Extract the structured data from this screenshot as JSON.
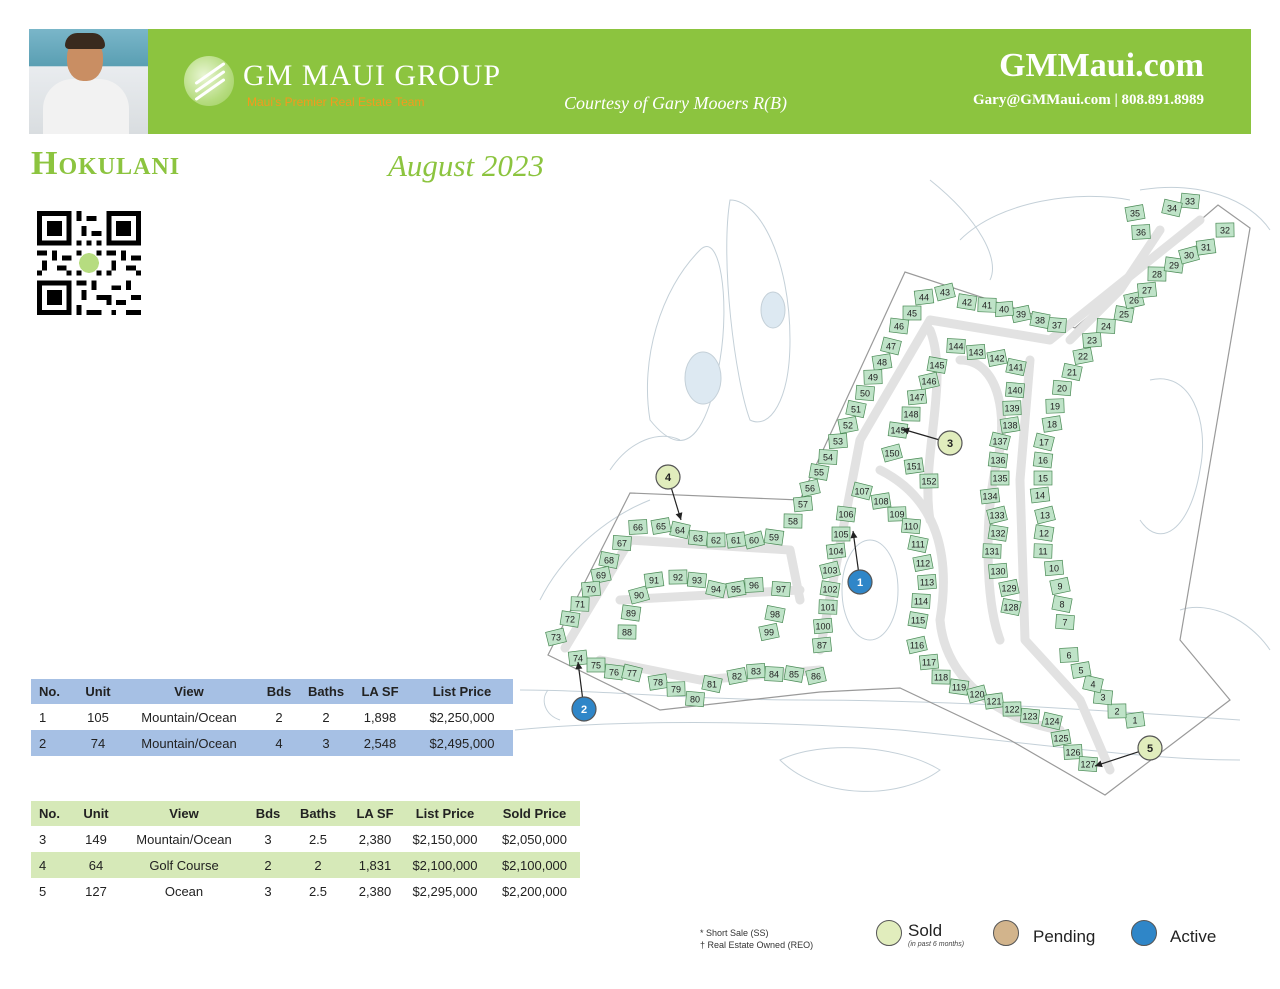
{
  "header": {
    "brand": "GM MAUI GROUP",
    "tagline": "Maui's Premier Real Estate Team",
    "courtesy": "Courtesy of Gary Mooers R(B)",
    "site": "GMMaui.com",
    "contact": "Gary@GMMaui.com | 808.891.8989"
  },
  "page": {
    "title": "Hokulani",
    "date": "August 2023"
  },
  "active_table": {
    "headers": [
      "No.",
      "Unit",
      "View",
      "Bds",
      "Baths",
      "LA SF",
      "List Price"
    ],
    "rows": [
      [
        "1",
        "105",
        "Mountain/Ocean",
        "2",
        "2",
        "1,898",
        "$2,250,000"
      ],
      [
        "2",
        "74",
        "Mountain/Ocean",
        "4",
        "3",
        "2,548",
        "$2,495,000"
      ]
    ]
  },
  "sold_table": {
    "headers": [
      "No.",
      "Unit",
      "View",
      "Bds",
      "Baths",
      "LA SF",
      "List Price",
      "Sold Price"
    ],
    "rows": [
      [
        "3",
        "149",
        "Mountain/Ocean",
        "3",
        "2.5",
        "2,380",
        "$2,150,000",
        "$2,050,000"
      ],
      [
        "4",
        "64",
        "Golf Course",
        "2",
        "2",
        "1,831",
        "$2,100,000",
        "$2,100,000"
      ],
      [
        "5",
        "127",
        "Ocean",
        "3",
        "2.5",
        "2,380",
        "$2,295,000",
        "$2,200,000"
      ]
    ]
  },
  "notes": {
    "line1": "Short Sale (SS)",
    "line2": "Real Estate Owned (REO)",
    "mark1": "*",
    "mark2": "†"
  },
  "legend": {
    "sold": "Sold",
    "sold_sub": "(in past 6 months)",
    "pending": "Pending",
    "active": "Active",
    "colors": {
      "sold": "#e1edbd",
      "pending": "#d2b48c",
      "active": "#2f86c8",
      "brand": "#8cc43f",
      "unit": "#bfe3c8"
    }
  },
  "map": {
    "markers": [
      {
        "label": "1",
        "status": "active"
      },
      {
        "label": "2",
        "status": "active"
      },
      {
        "label": "3",
        "status": "sold"
      },
      {
        "label": "4",
        "status": "sold"
      },
      {
        "label": "5",
        "status": "sold"
      }
    ]
  }
}
